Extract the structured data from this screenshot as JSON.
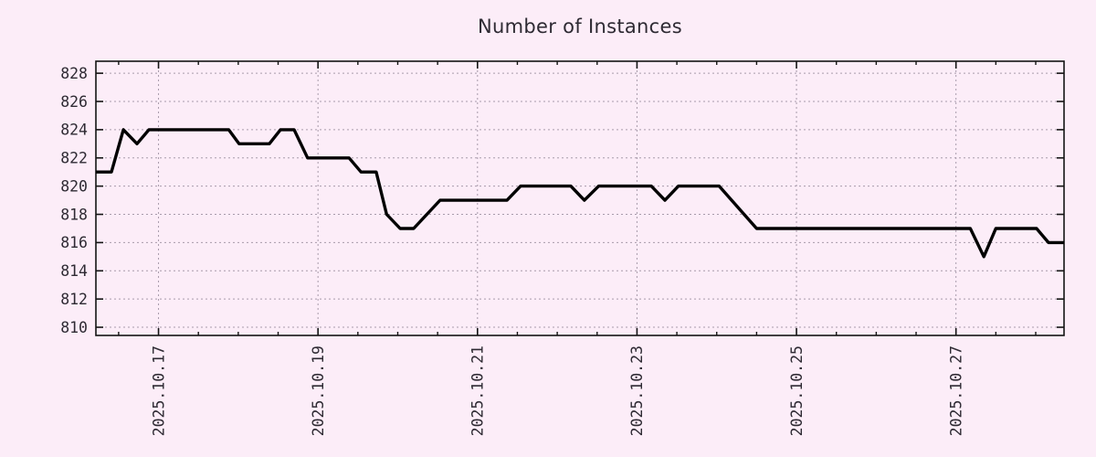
{
  "page": {
    "background": "#fcedf8"
  },
  "chart_data": {
    "type": "line",
    "title": "Number of Instances",
    "xlabel": "",
    "ylabel": "",
    "grid": true,
    "legend": "none",
    "xlim": [
      0.215,
      12.355
    ],
    "ylim": [
      809.42,
      828.85
    ],
    "y_ticks": [
      810,
      812,
      814,
      816,
      818,
      820,
      822,
      824,
      826,
      828
    ],
    "x_ticks": [
      {
        "pos": 1,
        "label": "2025.10.17"
      },
      {
        "pos": 3,
        "label": "2025.10.19"
      },
      {
        "pos": 5,
        "label": "2025.10.21"
      },
      {
        "pos": 7,
        "label": "2025.10.23"
      },
      {
        "pos": 9,
        "label": "2025.10.25"
      },
      {
        "pos": 11,
        "label": "2025.10.27"
      }
    ],
    "x_minor_step": 0.5,
    "x_unit": "days since 2025-10-16 00:00",
    "series": [
      {
        "name": "instances",
        "color": "#000000",
        "points": [
          [
            0.215,
            821
          ],
          [
            0.41,
            821
          ],
          [
            0.56,
            824
          ],
          [
            0.73,
            823
          ],
          [
            0.88,
            824
          ],
          [
            1.88,
            824
          ],
          [
            2.01,
            823
          ],
          [
            2.39,
            823
          ],
          [
            2.53,
            824
          ],
          [
            2.7,
            824
          ],
          [
            2.87,
            822
          ],
          [
            3.39,
            822
          ],
          [
            3.54,
            821
          ],
          [
            3.73,
            821
          ],
          [
            3.86,
            818
          ],
          [
            4.03,
            817
          ],
          [
            4.2,
            817
          ],
          [
            4.53,
            819
          ],
          [
            5.37,
            819
          ],
          [
            5.54,
            820
          ],
          [
            6.17,
            820
          ],
          [
            6.34,
            819
          ],
          [
            6.52,
            820
          ],
          [
            7.18,
            820
          ],
          [
            7.35,
            819
          ],
          [
            7.52,
            820
          ],
          [
            8.03,
            820
          ],
          [
            8.5,
            817
          ],
          [
            11.18,
            817
          ],
          [
            11.35,
            815
          ],
          [
            11.5,
            817
          ],
          [
            12.01,
            817
          ],
          [
            12.16,
            816
          ],
          [
            12.355,
            816
          ]
        ]
      }
    ],
    "colors": {
      "background": "#fcedf8",
      "grid": "#a89bab",
      "border": "#141414",
      "tick_text": "#2e2a33",
      "title_text": "#2e2a33",
      "line": "#000000"
    }
  }
}
